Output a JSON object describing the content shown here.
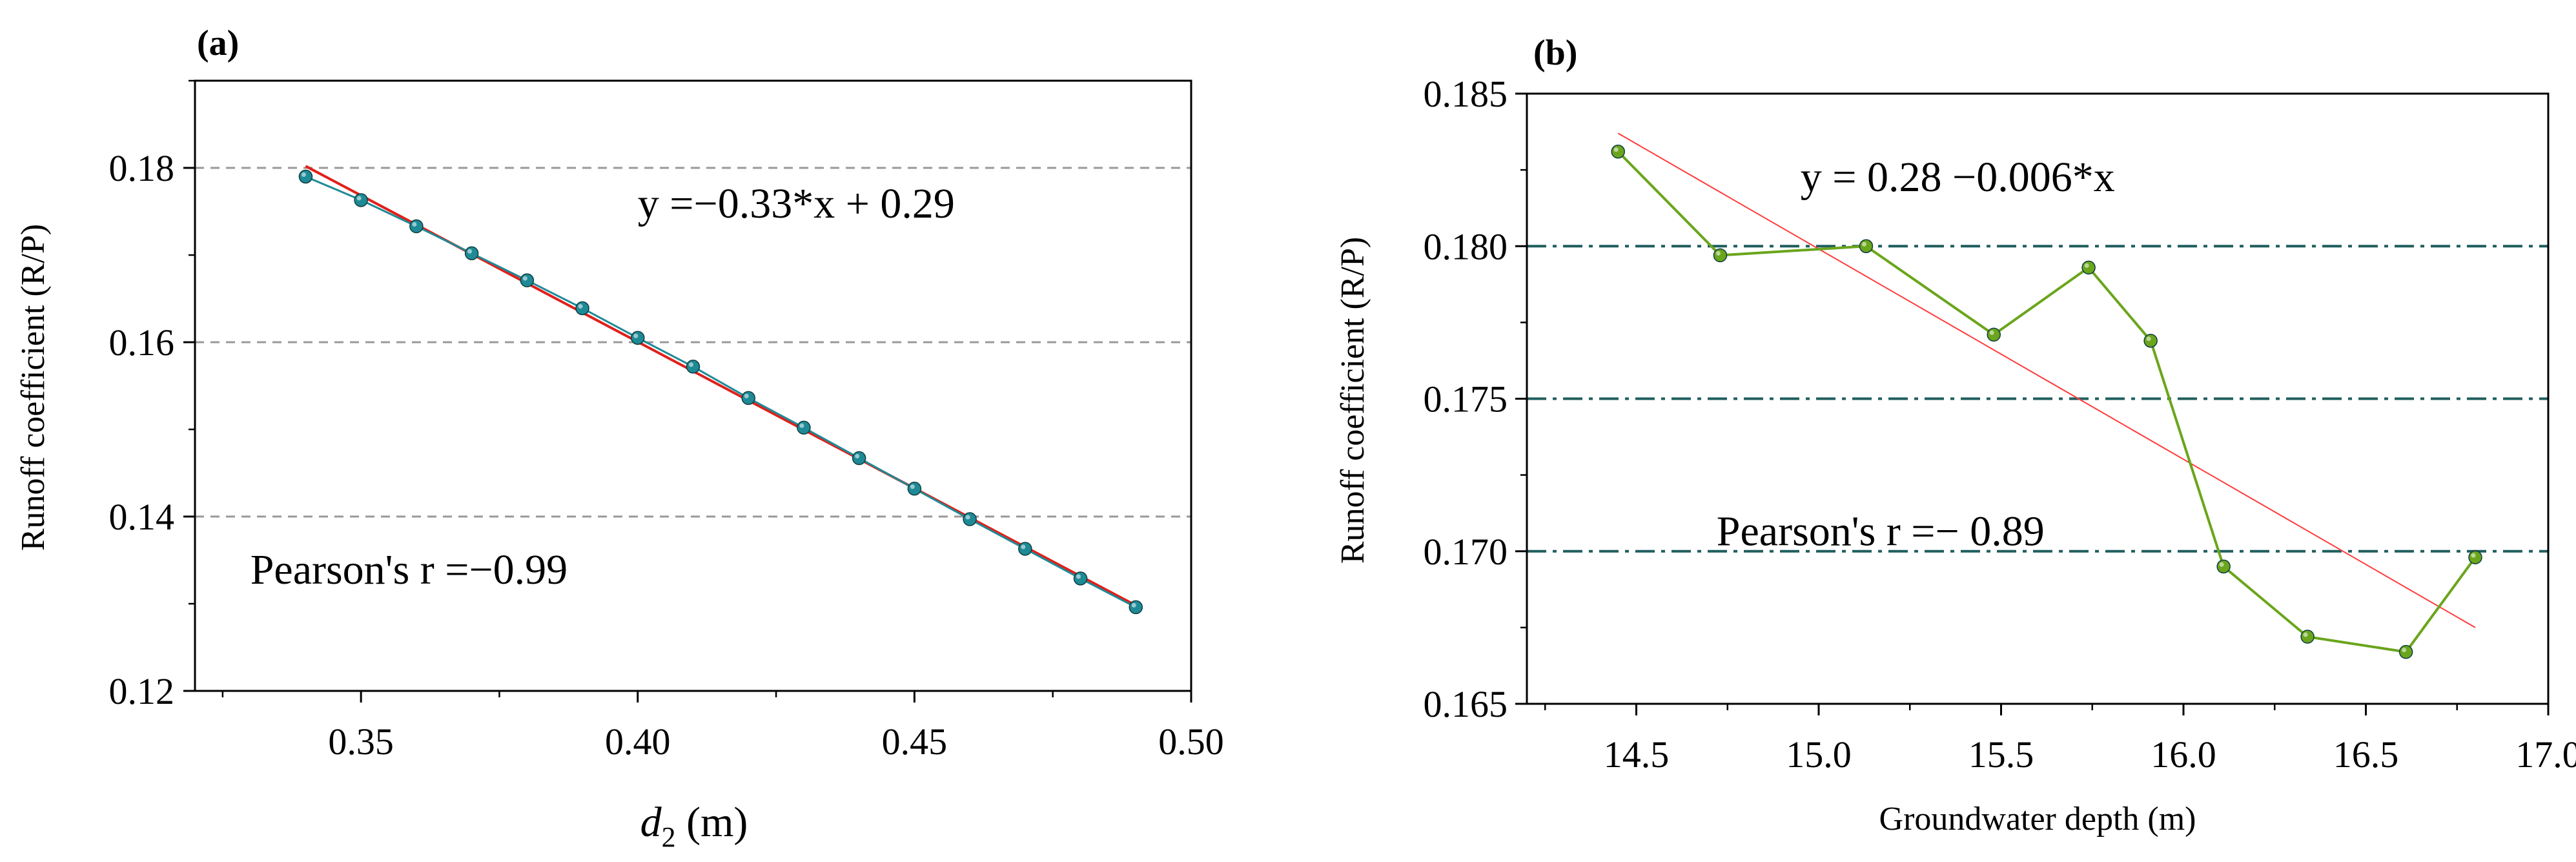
{
  "chart_data": [
    {
      "panel": "(a)",
      "type": "line",
      "title": "",
      "xlabel": {
        "var": "d",
        "sub": "2",
        "unit": " (m)"
      },
      "ylabel": "Runoff coefficient (R/P)",
      "xlim": [
        0.32,
        0.5
      ],
      "ylim": [
        0.12,
        0.19
      ],
      "xticks": [
        "0.35",
        "0.40",
        "0.45",
        "0.50"
      ],
      "xtick_values": [
        0.35,
        0.4,
        0.45,
        0.5
      ],
      "yticks": [
        "0.12",
        "0.14",
        "0.16",
        "0.18"
      ],
      "ytick_values": [
        0.12,
        0.14,
        0.16,
        0.18
      ],
      "gridlines_y": [
        0.14,
        0.16,
        0.18
      ],
      "colors": {
        "series": "#1e8a96",
        "marker": "#1e8a96",
        "fit": "#e0201b",
        "grid": "#999999"
      },
      "series": [
        {
          "name": "data",
          "x": [
            0.34,
            0.35,
            0.36,
            0.37,
            0.38,
            0.39,
            0.4,
            0.41,
            0.42,
            0.43,
            0.44,
            0.45,
            0.46,
            0.47,
            0.48,
            0.49
          ],
          "y": [
            0.179,
            0.1763,
            0.1733,
            0.1702,
            0.1671,
            0.1639,
            0.1605,
            0.1572,
            0.1536,
            0.1502,
            0.1467,
            0.1432,
            0.1397,
            0.1363,
            0.1329,
            0.1296
          ]
        }
      ],
      "fit": {
        "x": [
          0.34,
          0.49
        ],
        "y": [
          0.1802,
          0.1298
        ]
      },
      "annotations": [
        {
          "text": "y =−0.33*x + 0.29",
          "x": 0.4,
          "y": 0.1743
        },
        {
          "text": "Pearson's r =−0.99",
          "x": 0.33,
          "y": 0.1323
        }
      ]
    },
    {
      "panel": "(b)",
      "type": "line",
      "title": "",
      "xlabel": "Groundwater depth (m)",
      "ylabel": "Runoff coefficient (R/P)",
      "xlim": [
        14.2,
        17.0
      ],
      "ylim": [
        0.165,
        0.185
      ],
      "xticks": [
        "14.5",
        "15.0",
        "15.5",
        "16.0",
        "16.5",
        "17.0"
      ],
      "xtick_values": [
        14.5,
        15.0,
        15.5,
        16.0,
        16.5,
        17.0
      ],
      "yticks": [
        "0.165",
        "0.170",
        "0.175",
        "0.180",
        "0.185"
      ],
      "ytick_values": [
        0.165,
        0.17,
        0.175,
        0.18,
        0.185
      ],
      "gridlines_y": [
        0.17,
        0.175,
        0.18
      ],
      "colors": {
        "series": "#6aa51c",
        "marker": "#6aa51c",
        "fit": "#ff3b3b",
        "grid": "#1f5e5e"
      },
      "series": [
        {
          "name": "data",
          "x": [
            14.45,
            14.73,
            15.13,
            15.48,
            15.74,
            15.91,
            16.11,
            16.34,
            16.61,
            16.8
          ],
          "y": [
            0.1831,
            0.1797,
            0.18,
            0.1771,
            0.1793,
            0.1769,
            0.1695,
            0.1672,
            0.1667,
            0.1698
          ]
        }
      ],
      "fit": {
        "x": [
          14.45,
          16.8
        ],
        "y": [
          0.1837,
          0.1675
        ]
      },
      "annotations": [
        {
          "text": "y = 0.28 −0.006*x",
          "x": 14.95,
          "y": 0.1818
        },
        {
          "text": "Pearson's r =− 0.89",
          "x": 14.72,
          "y": 0.1702
        }
      ]
    }
  ]
}
